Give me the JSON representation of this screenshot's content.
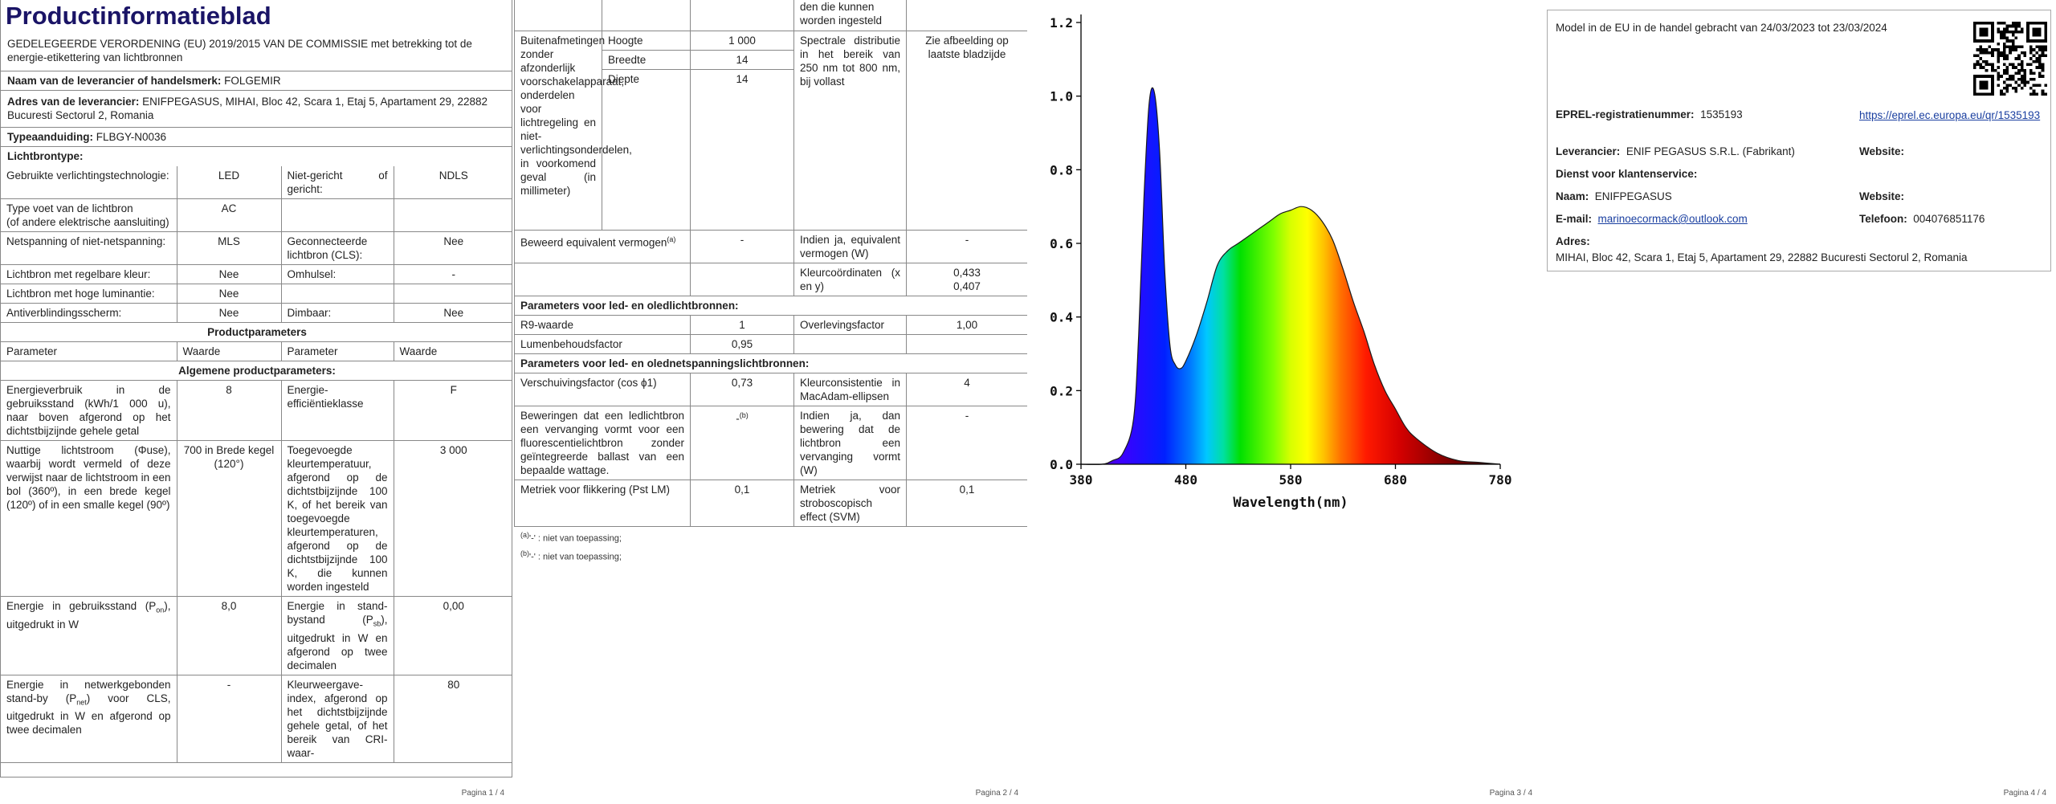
{
  "pages": {
    "p1_footer": "Pagina 1 / 4",
    "p2_footer": "Pagina 2 / 4",
    "p3_footer": "Pagina 3 / 4",
    "p4_footer": "Pagina 4 / 4"
  },
  "p1": {
    "title": "Productinformatieblad",
    "regulation": "GEDELEGEERDE VERORDENING (EU) 2019/2015 VAN DE COMMISSIE met betrekking tot de energie-etikettering van lichtbronnen",
    "supplier_name_label": "Naam van de leverancier of handelsmerk:",
    "supplier_name": "FOLGEMIR",
    "address_label": "Adres van de leverancier:",
    "address": "ENIFPEGASUS, MIHAI, Bloc 42, Scara 1, Etaj 5, Apartament 29, 22882 Bucuresti Sectorul 2, Romania",
    "model_label": "Typeaanduiding:",
    "model": "FLBGY-N0036",
    "lightsource_type_label": "Lichtbrontype:",
    "tech_label": "Gebruikte verlichtingstechnologie:",
    "tech_value": "LED",
    "nondirectional_label": "Niet-gericht of gericht:",
    "nondirectional_value": "NDLS",
    "cap_label": "Type voet van de lichtbron",
    "cap_label2": "(of andere elektrische aansluiting)",
    "cap_value": "AC",
    "mains_label": "Netspanning of niet-netspanning:",
    "mains_value": "MLS",
    "cls_label": "Geconnecteerde lichtbron (CLS):",
    "cls_value": "Nee",
    "colour_tunable_label": "Lichtbron met regelbare kleur:",
    "colour_tunable_value": "Nee",
    "envelope_label": "Omhulsel:",
    "envelope_value": "-",
    "high_lum_label": "Lichtbron met hoge luminantie:",
    "high_lum_value": "Nee",
    "antiglare_label": "Antiverblindingsscherm:",
    "antiglare_value": "Nee",
    "dimmable_label": "Dimbaar:",
    "dimmable_value": "Nee",
    "product_params_header": "Productparameters",
    "col_param": "Parameter",
    "col_value": "Waarde",
    "general_params_header": "Algemene productparameters:",
    "energy_cons_label": "Energieverbruik in de gebruiksstand (kWh/1 000 u), naar boven afgerond op het dichtstbijzijnde gehele getal",
    "energy_cons_value": "8",
    "energy_class_label": "Energie-efficiëntieklasse",
    "energy_class_value": "F",
    "flux_label": "Nuttige lichtstroom (Φuse), waarbij wordt vermeld of deze verwijst naar de lichtstroom in een bol (360º), in een brede kegel (120º) of in een smalle kegel (90º)",
    "flux_value": "700 in Brede kegel (120°)",
    "cct_label": "Toegevoegde kleurtemperatuur, afgerond op de dichtstbijzijnde 100 K, of het bereik van toegevoegde kleurtemperaturen, afgerond op de dichtstbijzijnde 100 K, die kunnen worden ingesteld",
    "cct_value": "3 000",
    "pon_label_a": "Energie in gebruiksstand (P",
    "pon_sub": "on",
    "pon_label_b": "), uitgedrukt in W",
    "pon_value": "8,0",
    "psb_label_a": "Energie in stand-bystand (P",
    "psb_sub": "sb",
    "psb_label_b": "), uitgedrukt in W en afgerond op twee decimalen",
    "psb_value": "0,00",
    "pnet_label_a": "Energie in netwerkgebonden stand-by (P",
    "pnet_sub": "net",
    "pnet_label_b": ") voor CLS, uitgedrukt in W en afgerond op twee decimalen",
    "pnet_value": "-",
    "cri_label": "Kleurweergave-index, afgerond op het dichtstbijzijnde gehele getal, of het bereik van CRI-waar-",
    "cri_value": "80"
  },
  "p2": {
    "cont_text": "den die kunnen worden ingesteld",
    "dims_label": "Buitenafmetingen zonder afzonderlijk voorschakelapparaat, onderdelen voor lichtregeling en niet-verlichtingsonderdelen, in voorkomend geval (in millimeter)",
    "height_label": "Hoogte",
    "height_value": "1 000",
    "width_label": "Breedte",
    "width_value": "14",
    "depth_label": "Diepte",
    "depth_value": "14",
    "spectral_label": "Spectrale distributie in het bereik van 250 nm tot 800 nm, bij vollast",
    "spectral_value": "Zie afbeelding op laatste bladzijde",
    "eq_power_label": "Beweerd equivalent vermogen",
    "eq_power_sup": "(a)",
    "eq_power_value": "-",
    "eq_power_w_label": "Indien ja, equivalent vermogen (W)",
    "eq_power_w_value": "-",
    "chroma_label": "Kleurcoördinaten (x en y)",
    "chroma_x": "0,433",
    "chroma_y": "0,407",
    "led_params_header": "Parameters voor led- en oledlichtbronnen:",
    "r9_label": "R9-waarde",
    "r9_value": "1",
    "survival_label": "Overlevingsfactor",
    "survival_value": "1,00",
    "lumen_maint_label": "Lumenbehoudsfactor",
    "lumen_maint_value": "0,95",
    "mains_led_header": "Parameters voor led- en olednetspanningslichtbronnen:",
    "dpf_label": "Verschuivingsfactor (cos ϕ1)",
    "dpf_value": "0,73",
    "colour_cons_label": "Kleurconsistentie in MacAdam-ellipsen",
    "colour_cons_value": "4",
    "replace_label": "Beweringen dat een ledlichtbron een vervanging vormt voor een fluorescentielichtbron zonder geïntegreerde ballast van een bepaalde wattage.",
    "replace_value": "-",
    "replace_sup": "(b)",
    "replace_w_label": "Indien ja, dan bewering dat de lichtbron een vervanging vormt (W)",
    "replace_w_value": "-",
    "flicker_label": "Metriek voor flikkering (Pst LM)",
    "flicker_value": "0,1",
    "strobo_label": "Metriek voor stroboscopisch effect (SVM)",
    "strobo_value": "0,1",
    "note_a_mark": "(a)",
    "note_a_text": "'-' : niet van toepassing;",
    "note_b_mark": "(b)",
    "note_b_text": "'-' : niet van toepassing;"
  },
  "chart_data": {
    "type": "line",
    "title": "",
    "xlabel": "Wavelength(nm)",
    "ylabel": "",
    "xlim": [
      380,
      780
    ],
    "ylim": [
      0,
      1.2
    ],
    "x_ticks": [
      380,
      480,
      580,
      680,
      780
    ],
    "y_ticks": [
      0.0,
      0.2,
      0.4,
      0.6,
      0.8,
      1.0,
      1.2
    ],
    "y_tick_labels": [
      "0.0",
      "0.2",
      "0.4",
      "0.6",
      "0.8",
      "1.0",
      "1.2"
    ],
    "fill": "visible-spectrum gradient",
    "grid": false,
    "series": [
      {
        "x": [
          380,
          400,
          410,
          420,
          430,
          435,
          440,
          445,
          450,
          455,
          460,
          465,
          470,
          475,
          480,
          490,
          500,
          510,
          520,
          530,
          540,
          550,
          560,
          570,
          580,
          590,
          600,
          610,
          620,
          630,
          640,
          650,
          660,
          670,
          680,
          690,
          700,
          720,
          740,
          760,
          780
        ],
        "values": [
          0.0,
          0.0,
          0.01,
          0.03,
          0.12,
          0.35,
          0.72,
          0.98,
          1.01,
          0.85,
          0.52,
          0.32,
          0.27,
          0.26,
          0.28,
          0.35,
          0.44,
          0.54,
          0.58,
          0.6,
          0.62,
          0.64,
          0.66,
          0.68,
          0.69,
          0.7,
          0.69,
          0.66,
          0.61,
          0.53,
          0.44,
          0.36,
          0.27,
          0.2,
          0.15,
          0.1,
          0.07,
          0.03,
          0.01,
          0.005,
          0.0
        ]
      }
    ]
  },
  "p4": {
    "market_line": "Model in de EU in de handel gebracht van 24/03/2023 tot 23/03/2024",
    "eprel_label": "EPREL-registratienummer:",
    "eprel_value": "1535193",
    "eprel_link": "https://eprel.ec.europa.eu/qr/1535193",
    "supplier_label": "Leverancier:",
    "supplier_value": "ENIF PEGASUS S.R.L. (Fabrikant)",
    "website_label": "Website:",
    "service_label": "Dienst voor klantenservice:",
    "name_label": "Naam:",
    "name_value": "ENIFPEGASUS",
    "website2_label": "Website:",
    "email_label": "E-mail:",
    "email_value": "marinoecormack@outlook.com",
    "phone_label": "Telefoon:",
    "phone_value": "004076851176",
    "address_label": "Adres:",
    "address_value": "MIHAI, Bloc 42, Scara 1, Etaj 5, Apartament 29, 22882 Bucuresti Sectorul 2, Romania"
  }
}
